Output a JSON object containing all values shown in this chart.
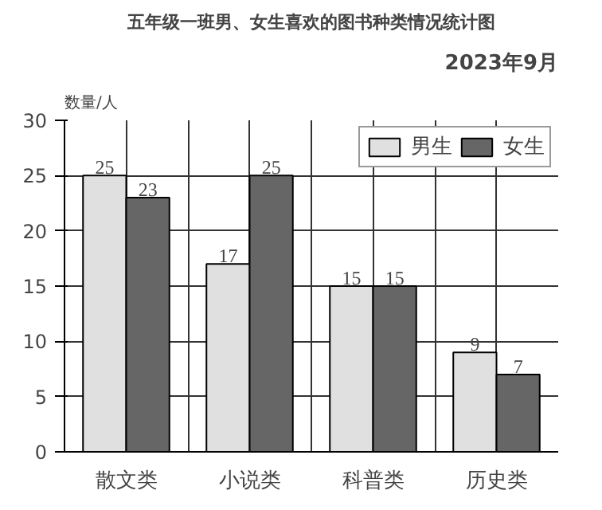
{
  "chart_data": {
    "type": "bar",
    "title": "五年级一班男、女生喜欢的图书种类情况统计图",
    "subtitle": "2023年9月",
    "ylabel": "数量/人",
    "categories": [
      "散文类",
      "小说类",
      "科普类",
      "历史类"
    ],
    "series": [
      {
        "name": "男生",
        "color": "#e0e0e0",
        "values": [
          25,
          17,
          15,
          9
        ]
      },
      {
        "name": "女生",
        "color": "#666666",
        "values": [
          23,
          25,
          15,
          7
        ]
      }
    ],
    "ylim": [
      0,
      30
    ],
    "yticks": [
      0,
      5,
      10,
      15,
      20,
      25,
      30
    ],
    "grid": true,
    "legend": "top right",
    "data_labels": true
  }
}
